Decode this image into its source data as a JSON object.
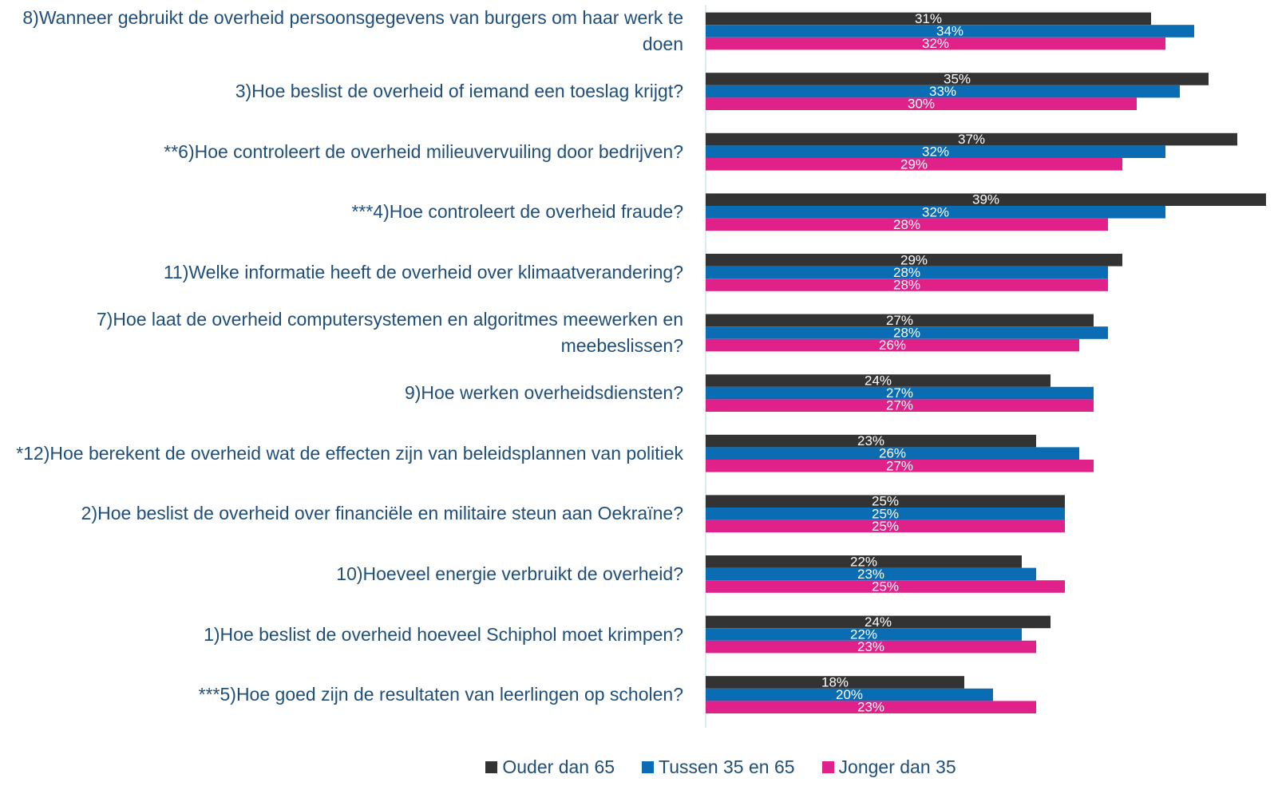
{
  "chart_data": {
    "type": "bar",
    "orientation": "horizontal",
    "categories": [
      "8)Wanneer gebruikt de overheid persoonsgegevens van burgers om haar werk te doen",
      "3)Hoe beslist de overheid of iemand een toeslag krijgt?",
      "**6)Hoe controleert de overheid milieuvervuiling door bedrijven?",
      "***4)Hoe controleert de overheid fraude?",
      "11)Welke informatie heeft de overheid over klimaatverandering?",
      "7)Hoe laat de overheid computersystemen en algoritmes meewerken en meebeslissen?",
      "9)Hoe werken overheidsdiensten?",
      "*12)Hoe berekent de overheid wat de effecten zijn van beleidsplannen van politiek",
      "2)Hoe beslist de overheid over financiële en militaire steun aan Oekraïne?",
      "10)Hoeveel energie verbruikt de overheid?",
      "1)Hoe beslist de overheid hoeveel Schiphol moet krimpen?",
      "***5)Hoe goed zijn de resultaten van leerlingen op scholen?"
    ],
    "series": [
      {
        "name": "Ouder dan 65",
        "color": "#333333",
        "values": [
          31,
          35,
          37,
          39,
          29,
          27,
          24,
          23,
          25,
          22,
          24,
          18
        ],
        "value_labels": [
          "31%",
          "35%",
          "37%",
          "39%",
          "29%",
          "27%",
          "24%",
          "23%",
          "25%",
          "22%",
          "24%",
          "18%"
        ]
      },
      {
        "name": "Tussen 35 en 65",
        "color": "#0a6db3",
        "values": [
          34,
          33,
          32,
          32,
          28,
          28,
          27,
          26,
          25,
          23,
          22,
          20
        ],
        "value_labels": [
          "34%",
          "33%",
          "32%",
          "32%",
          "28%",
          "28%",
          "27%",
          "26%",
          "25%",
          "23%",
          "22%",
          "20%"
        ]
      },
      {
        "name": "Jonger dan 35",
        "color": "#e0218a",
        "values": [
          32,
          30,
          29,
          28,
          28,
          26,
          27,
          27,
          25,
          25,
          23,
          23
        ],
        "value_labels": [
          "32%",
          "30%",
          "29%",
          "28%",
          "28%",
          "26%",
          "27%",
          "27%",
          "25%",
          "25%",
          "23%",
          "23%"
        ]
      }
    ],
    "xlim": [
      0,
      38
    ],
    "legend": "bottom"
  }
}
